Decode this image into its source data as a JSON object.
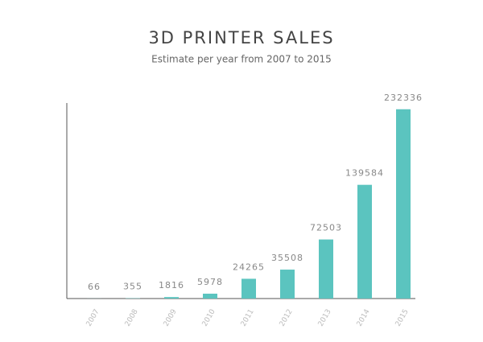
{
  "chart_data": {
    "type": "bar",
    "title": "3D PRINTER SALES",
    "subtitle": "Estimate per year from 2007 to 2015",
    "categories": [
      "2007",
      "2008",
      "2009",
      "2010",
      "2011",
      "2012",
      "2013",
      "2014",
      "2015"
    ],
    "values": [
      66,
      355,
      1816,
      5978,
      24265,
      35508,
      72503,
      139584,
      232336
    ],
    "color": "#5bc4bf",
    "ylim": [
      0,
      240000
    ],
    "grid": false
  }
}
